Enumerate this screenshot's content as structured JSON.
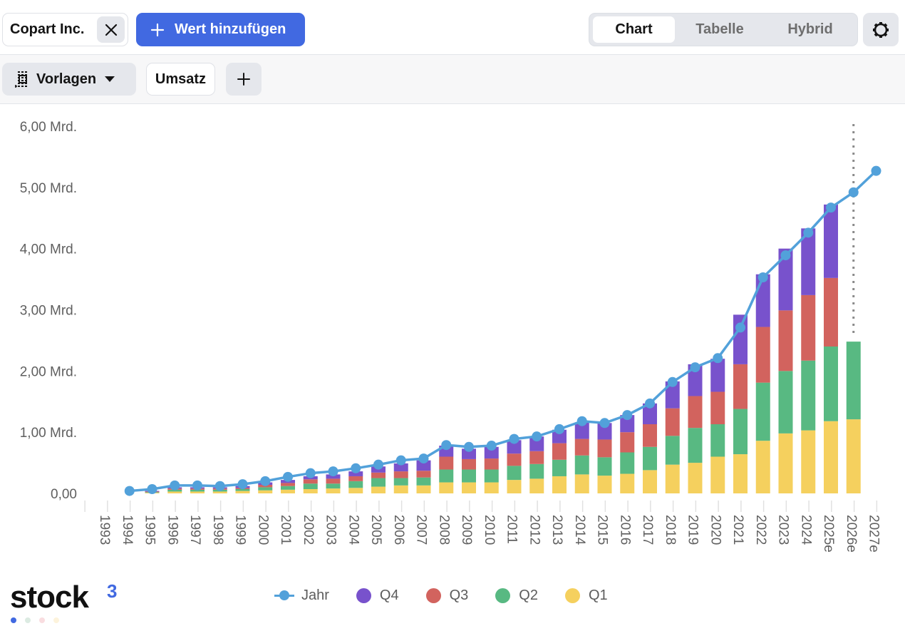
{
  "header": {
    "instrument_chip": "Copart Inc.",
    "add_value_label": "Wert hinzufügen",
    "view_tabs": [
      {
        "label": "Chart",
        "active": true
      },
      {
        "label": "Tabelle",
        "active": false
      },
      {
        "label": "Hybrid",
        "active": false
      }
    ],
    "settings_icon": "gear-icon",
    "close_icon": "close-icon",
    "plus_icon": "plus-icon"
  },
  "toolbar": {
    "templates_label": "Vorlagen",
    "templates_icon": "template-list-icon",
    "metric_label": "Umsatz",
    "add_metric_icon": "plus-icon"
  },
  "colors": {
    "accent": "#4169e1",
    "jahr": "#52a1da",
    "q4": "#7852cc",
    "q3": "#d2635e",
    "q2": "#58b982",
    "q1": "#f5d05e"
  },
  "logo": {
    "text": "stock",
    "sup": "3",
    "dot_colors": [
      "#4169e1",
      "#dcebe2",
      "#f9dde0",
      "#fdf3dc"
    ]
  },
  "chart_data": {
    "type": "bar",
    "stacked": true,
    "title": "",
    "xlabel": "",
    "ylabel": "",
    "ylim": [
      0,
      6
    ],
    "yunit": "Mrd.",
    "yticks": [
      "0,00",
      "1,00 Mrd.",
      "2,00 Mrd.",
      "3,00 Mrd.",
      "4,00 Mrd.",
      "5,00 Mrd.",
      "6,00 Mrd."
    ],
    "ytick_values": [
      0,
      1,
      2,
      3,
      4,
      5,
      6
    ],
    "grid": false,
    "legend_position": "bottom",
    "estimate_marker_after": "2025e",
    "categories": [
      "1993",
      "1994",
      "1995",
      "1996",
      "1997",
      "1998",
      "1999",
      "2000",
      "2001",
      "2002",
      "2003",
      "2004",
      "2005",
      "2006",
      "2007",
      "2008",
      "2009",
      "2010",
      "2011",
      "2012",
      "2013",
      "2014",
      "2015",
      "2016",
      "2017",
      "2018",
      "2019",
      "2020",
      "2021",
      "2022",
      "2023",
      "2024",
      "2025e",
      "2026e",
      "2027e"
    ],
    "series": [
      {
        "name": "Q1",
        "type": "bar",
        "values": [
          null,
          null,
          0.01,
          0.03,
          0.03,
          0.03,
          0.04,
          0.05,
          0.06,
          0.07,
          0.08,
          0.09,
          0.11,
          0.13,
          0.13,
          0.18,
          0.18,
          0.18,
          0.22,
          0.24,
          0.28,
          0.31,
          0.29,
          0.32,
          0.38,
          0.47,
          0.5,
          0.6,
          0.64,
          0.86,
          0.98,
          1.03,
          1.18,
          1.21,
          null
        ]
      },
      {
        "name": "Q2",
        "type": "bar",
        "values": [
          null,
          null,
          0.01,
          0.03,
          0.03,
          0.03,
          0.03,
          0.05,
          0.06,
          0.09,
          0.08,
          0.11,
          0.14,
          0.12,
          0.13,
          0.21,
          0.21,
          0.21,
          0.23,
          0.24,
          0.27,
          0.31,
          0.3,
          0.35,
          0.38,
          0.47,
          0.57,
          0.53,
          0.74,
          0.95,
          1.02,
          1.14,
          1.22,
          1.27,
          null
        ]
      },
      {
        "name": "Q3",
        "type": "bar",
        "values": [
          null,
          null,
          0.01,
          0.02,
          0.02,
          0.02,
          0.02,
          0.04,
          0.05,
          0.07,
          0.08,
          0.08,
          0.09,
          0.11,
          0.11,
          0.21,
          0.17,
          0.18,
          0.2,
          0.21,
          0.27,
          0.27,
          0.29,
          0.33,
          0.37,
          0.45,
          0.52,
          0.53,
          0.73,
          0.91,
          0.99,
          1.07,
          1.12,
          null,
          null
        ]
      },
      {
        "name": "Q4",
        "type": "bar",
        "values": [
          null,
          null,
          0.01,
          0.02,
          0.02,
          0.02,
          0.03,
          0.04,
          0.05,
          0.05,
          0.07,
          0.08,
          0.1,
          0.13,
          0.17,
          0.18,
          0.17,
          0.19,
          0.22,
          0.24,
          0.22,
          0.27,
          0.27,
          0.28,
          0.34,
          0.44,
          0.52,
          0.54,
          0.81,
          0.86,
          1.01,
          1.09,
          1.2,
          null,
          null
        ]
      },
      {
        "name": "Jahr",
        "type": "line",
        "values": [
          null,
          0.04,
          0.07,
          0.13,
          0.13,
          0.12,
          0.15,
          0.2,
          0.27,
          0.33,
          0.36,
          0.41,
          0.47,
          0.54,
          0.57,
          0.79,
          0.76,
          0.78,
          0.89,
          0.93,
          1.05,
          1.18,
          1.15,
          1.28,
          1.47,
          1.82,
          2.06,
          2.21,
          2.71,
          3.53,
          3.89,
          4.26,
          4.67,
          4.92,
          5.27
        ]
      }
    ],
    "legend": [
      "Jahr",
      "Q4",
      "Q3",
      "Q2",
      "Q1"
    ]
  }
}
